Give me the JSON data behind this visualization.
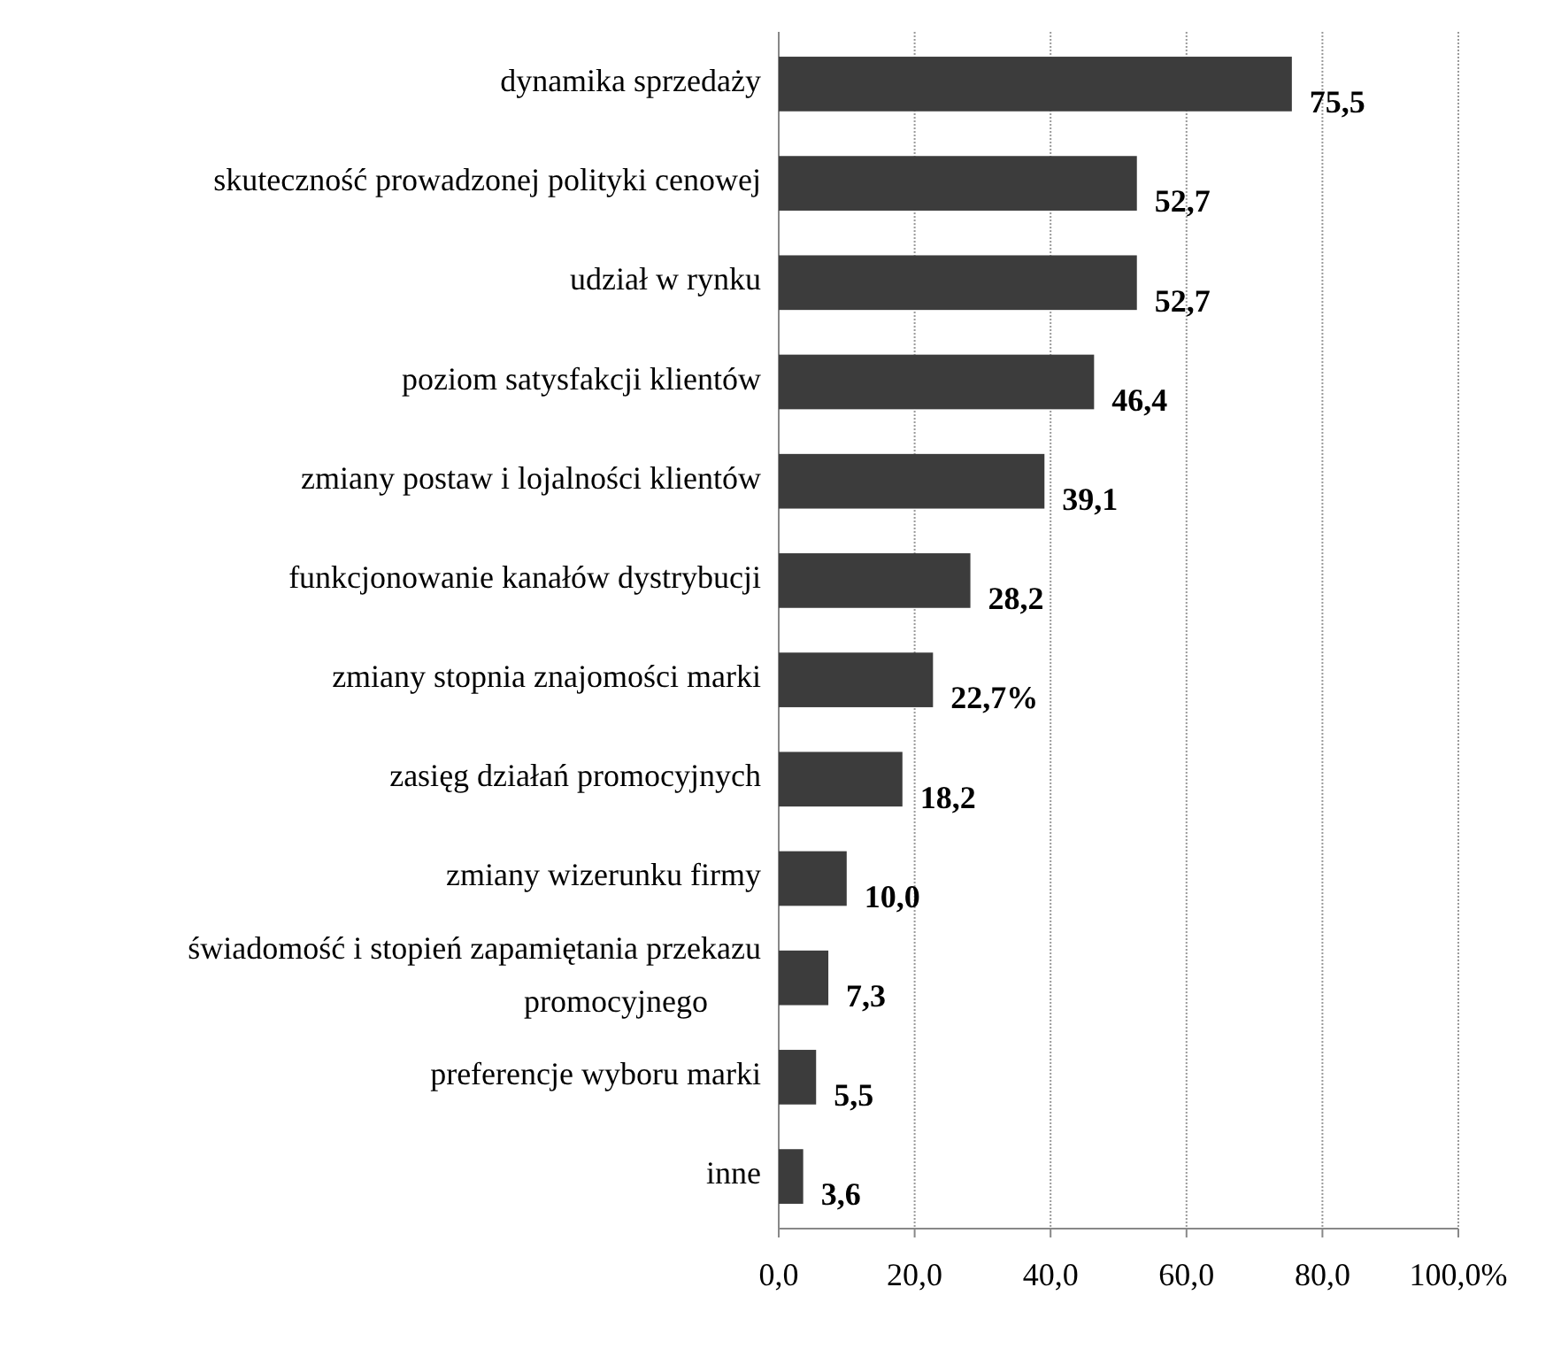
{
  "chart_data": {
    "type": "bar",
    "orientation": "horizontal",
    "categories": [
      "dynamika sprzedaży",
      "skuteczność prowadzonej polityki cenowej",
      "udział w rynku",
      "poziom satysfakcji klientów",
      "zmiany postaw i lojalności klientów",
      "funkcjonowanie kanałów dystrybucji",
      "zmiany stopnia znajomości marki",
      "zasięg działań promocyjnych",
      "zmiany wizerunku firmy",
      "świadomość i stopień zapamiętania przekazu promocyjnego",
      "preferencje wyboru marki",
      "inne"
    ],
    "values": [
      75.5,
      52.7,
      52.7,
      46.4,
      39.1,
      28.2,
      22.7,
      18.2,
      10.0,
      7.3,
      5.5,
      3.6
    ],
    "value_labels": [
      "75,5",
      "52,7",
      "52,7",
      "46,4",
      "39,1",
      "28,2",
      "22,7%",
      "18,2",
      "10,0",
      "7,3",
      "5,5",
      "3,6"
    ],
    "color": "#3c3c3c",
    "xlim": [
      0,
      100
    ],
    "xticks": [
      {
        "value": 0,
        "label": "0,0"
      },
      {
        "value": 20,
        "label": "20,0"
      },
      {
        "value": 40,
        "label": "40,0"
      },
      {
        "value": 60,
        "label": "60,0"
      },
      {
        "value": 80,
        "label": "80,0"
      },
      {
        "value": 100,
        "label": "100,0%"
      }
    ],
    "grid": "x"
  }
}
